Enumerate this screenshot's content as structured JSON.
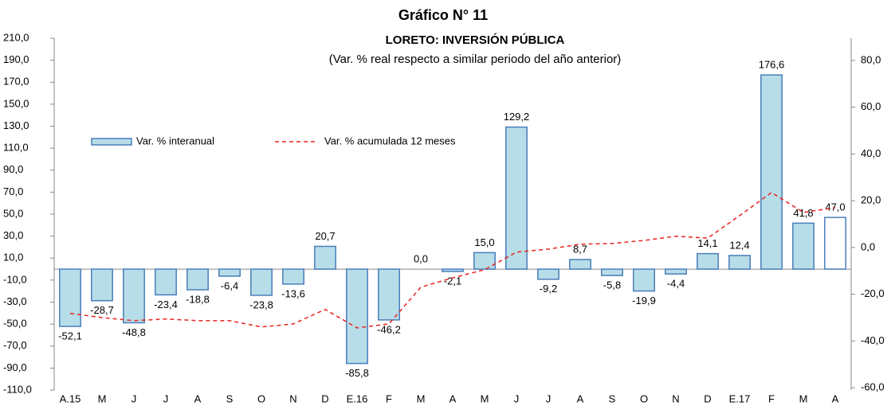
{
  "chart_data": {
    "type": "bar-line",
    "title": "Gráfico N° 11",
    "subtitle": "LORETO: INVERSIÓN PÚBLICA",
    "note": "(Var. % real respecto a similar periodo del año anterior)",
    "categories": [
      "A.15",
      "M",
      "J",
      "J",
      "A",
      "S",
      "O",
      "N",
      "D",
      "E.16",
      "F",
      "M",
      "A",
      "M",
      "J",
      "J",
      "A",
      "S",
      "O",
      "N",
      "D",
      "E.17",
      "F",
      "M",
      "A"
    ],
    "series": [
      {
        "name": "Var. % interanual",
        "type": "bar",
        "color": "#b7dde8",
        "edge": "#4a7ebb",
        "bar_fills": [
          "#b7dde8",
          "#b7dde8",
          "#b7dde8",
          "#b7dde8",
          "#b7dde8",
          "#b7dde8",
          "#b7dde8",
          "#b7dde8",
          "#b7dde8",
          "#b7dde8",
          "#b7dde8",
          "#b7dde8",
          "#b7dde8",
          "#b7dde8",
          "#b7dde8",
          "#b7dde8",
          "#b7dde8",
          "#b7dde8",
          "#b7dde8",
          "#b7dde8",
          "#b7dde8",
          "#b7dde8",
          "#b7dde8",
          "#b7dde8",
          "#ffffff"
        ],
        "values": [
          -52.1,
          -28.7,
          -48.8,
          -23.4,
          -18.8,
          -6.4,
          -23.8,
          -13.6,
          20.7,
          -85.8,
          -46.2,
          0.0,
          -2.1,
          15.0,
          129.2,
          -9.2,
          8.7,
          -5.8,
          -19.9,
          -4.4,
          14.1,
          12.4,
          176.6,
          41.8,
          47.0
        ],
        "value_labels": [
          "-52,1",
          "-28,7",
          "-48,8",
          "-23,4",
          "-18,8",
          "-6,4",
          "-23,8",
          "-13,6",
          "20,7",
          "-85,8",
          "-46,2",
          "0,0",
          "-2,1",
          "15,0",
          "129,2",
          "-9,2",
          "8,7",
          "-5,8",
          "-19,9",
          "-4,4",
          "14,1",
          "12,4",
          "176,6",
          "41,8",
          "47,0"
        ]
      },
      {
        "name": "Var. % acumulada 12 meses",
        "type": "line",
        "axis": "y2",
        "color": "#e8251f",
        "dashed": true,
        "values": [
          -28.2,
          -30,
          -31.3,
          -30.6,
          -31.3,
          -31.3,
          -34,
          -32.7,
          -26.5,
          -34.4,
          -32.7,
          -17,
          -13,
          -9.5,
          -2,
          -0.7,
          1.4,
          1.7,
          3,
          4.8,
          4,
          13.6,
          23.5,
          15,
          17
        ]
      }
    ],
    "ylim": [
      -110,
      210
    ],
    "yticks": [
      {
        "value": -110,
        "label": "-110,0"
      },
      {
        "value": -90,
        "label": "-90,0"
      },
      {
        "value": -70,
        "label": "-70,0"
      },
      {
        "value": -50,
        "label": "-50,0"
      },
      {
        "value": -30,
        "label": "-30,0"
      },
      {
        "value": -10,
        "label": "-10,0"
      },
      {
        "value": 10,
        "label": "10,0"
      },
      {
        "value": 30,
        "label": "30,0"
      },
      {
        "value": 50,
        "label": "50,0"
      },
      {
        "value": 70,
        "label": "70,0"
      },
      {
        "value": 90,
        "label": "90,0"
      },
      {
        "value": 110,
        "label": "110,0"
      },
      {
        "value": 130,
        "label": "130,0"
      },
      {
        "value": 150,
        "label": "150,0"
      },
      {
        "value": 170,
        "label": "170,0"
      },
      {
        "value": 190,
        "label": "190,0"
      },
      {
        "value": 210,
        "label": "210,0"
      }
    ],
    "y2lim": [
      -61,
      89.5
    ],
    "y2ticks": [
      {
        "value": -60,
        "label": "-60,0"
      },
      {
        "value": -40,
        "label": "-40,0"
      },
      {
        "value": -20,
        "label": "-20,0"
      },
      {
        "value": 0,
        "label": "0,0"
      },
      {
        "value": 20,
        "label": "20,0"
      },
      {
        "value": 40,
        "label": "40,0"
      },
      {
        "value": 60,
        "label": "60,0"
      },
      {
        "value": 80,
        "label": "80,0"
      }
    ],
    "grid": false
  }
}
